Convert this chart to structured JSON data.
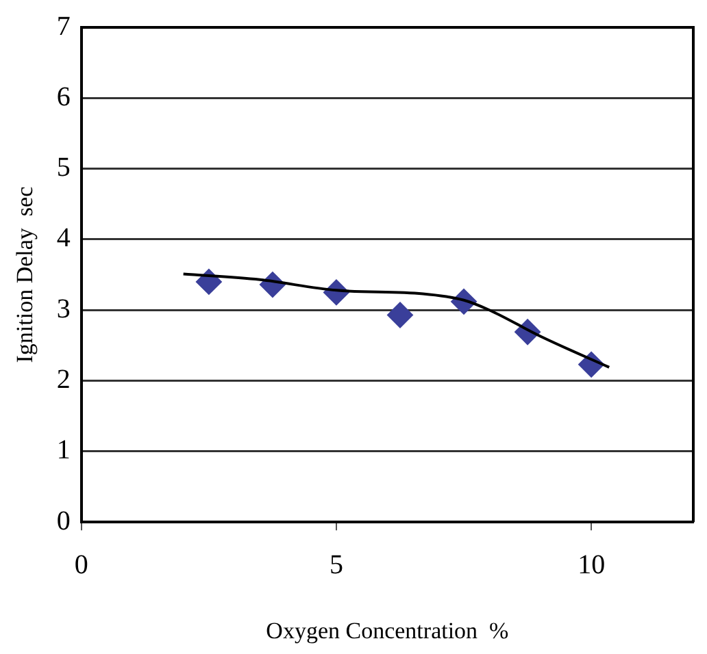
{
  "chart_data": {
    "type": "scatter",
    "xlabel": "Oxygen Concentration  %",
    "ylabel": "Ignition Delay  sec",
    "xlim": [
      0,
      12
    ],
    "xticks": [
      0,
      5,
      10
    ],
    "ylim": [
      0,
      7
    ],
    "yticks": [
      0,
      1,
      2,
      3,
      4,
      5,
      6,
      7
    ],
    "grid": "y",
    "legend": false,
    "series": [
      {
        "type": "scatter",
        "color": "#3a3f9a",
        "marker": "diamond",
        "x": [
          2.5,
          3.75,
          5,
          6.25,
          7.5,
          8.75,
          10
        ],
        "values": [
          3.4,
          3.36,
          3.25,
          2.93,
          3.12,
          2.69,
          2.23
        ]
      },
      {
        "type": "line",
        "color": "#000000",
        "marker": "none",
        "x": [
          2,
          3.5,
          5,
          6.7,
          7.5,
          8,
          9,
          10.35
        ],
        "values": [
          3.51,
          3.43,
          3.28,
          3.23,
          3.14,
          3.0,
          2.63,
          2.19
        ]
      }
    ]
  }
}
